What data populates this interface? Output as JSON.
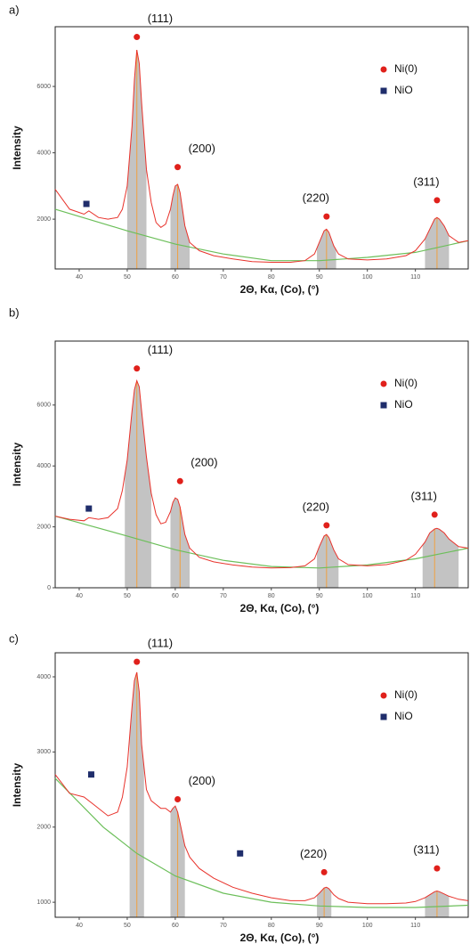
{
  "chart_data": [
    {
      "type": "line",
      "panel": "a)",
      "xlabel": "2Θ, Kα, (Co), (°)",
      "ylabel": "Intensity",
      "xlim": [
        35,
        121
      ],
      "ylim": [
        500,
        7800
      ],
      "xticks": [
        40,
        50,
        60,
        70,
        80,
        90,
        100,
        110
      ],
      "yticks": [
        2000,
        4000,
        6000
      ],
      "lines": [
        {
          "color": "#e8322b",
          "x": [
            35,
            38,
            41,
            42,
            44,
            46,
            48,
            49,
            50,
            51,
            51.5,
            52,
            52.5,
            53,
            54,
            55,
            56,
            57,
            58,
            59,
            59.5,
            60,
            60.5,
            61,
            61.5,
            62,
            63,
            65,
            68,
            72,
            76,
            80,
            84,
            87,
            89,
            90,
            91,
            91.5,
            92,
            93,
            94,
            96,
            100,
            104,
            108,
            110,
            112,
            113,
            114,
            114.5,
            115,
            116,
            117,
            119,
            121
          ],
          "values": [
            2900,
            2300,
            2150,
            2250,
            2050,
            2000,
            2050,
            2300,
            3000,
            4800,
            6200,
            7100,
            6700,
            5500,
            3500,
            2500,
            1900,
            1750,
            1850,
            2300,
            2700,
            3000,
            3050,
            2800,
            2300,
            1800,
            1300,
            1050,
            900,
            800,
            720,
            700,
            700,
            750,
            950,
            1300,
            1650,
            1700,
            1600,
            1200,
            950,
            800,
            770,
            800,
            900,
            1050,
            1400,
            1700,
            2000,
            2050,
            2000,
            1800,
            1500,
            1300,
            1350
          ]
        },
        {
          "color": "#6cbf5a",
          "x": [
            35,
            50,
            60,
            70,
            80,
            90,
            100,
            110,
            121
          ],
          "values": [
            2300,
            1650,
            1250,
            950,
            750,
            750,
            850,
            1000,
            1350
          ]
        }
      ],
      "regions": [
        [
          50,
          54
        ],
        [
          59,
          63
        ],
        [
          89.5,
          93.5
        ],
        [
          112,
          117
        ]
      ],
      "series": [
        {
          "name": "Ni(0)",
          "color": "#e0201b",
          "marker": "circle",
          "x": [
            52,
            60.5,
            91.5,
            114.5
          ],
          "values": [
            7490,
            3570,
            2080,
            2570
          ],
          "labels": [
            "(111)",
            "(200)",
            "(220)",
            "(311)"
          ]
        },
        {
          "name": "NiO",
          "color": "#1f2d6b",
          "marker": "square",
          "x": [
            41.5
          ],
          "values": [
            2460
          ]
        }
      ]
    },
    {
      "type": "line",
      "panel": "b)",
      "xlabel": "2Θ, Kα, (Co), (°)",
      "ylabel": "Intensity",
      "xlim": [
        35,
        121
      ],
      "ylim": [
        0,
        8100
      ],
      "xticks": [
        40,
        50,
        60,
        70,
        80,
        90,
        100,
        110
      ],
      "yticks": [
        0,
        2000,
        4000,
        6000
      ],
      "lines": [
        {
          "color": "#e8322b",
          "x": [
            35,
            38,
            41,
            42,
            44,
            46,
            48,
            49,
            50,
            51,
            51.5,
            52,
            52.5,
            53,
            54,
            55,
            56,
            57,
            58,
            59,
            59.5,
            60,
            60.5,
            61,
            61.5,
            62,
            63,
            65,
            68,
            72,
            76,
            80,
            84,
            87,
            89,
            90,
            91,
            91.5,
            92,
            93,
            94,
            96,
            100,
            104,
            108,
            110,
            112,
            113,
            114,
            114.5,
            115,
            116,
            117,
            119,
            121
          ],
          "values": [
            2350,
            2250,
            2200,
            2300,
            2250,
            2300,
            2600,
            3200,
            4200,
            5800,
            6500,
            6800,
            6600,
            5800,
            4300,
            3100,
            2400,
            2100,
            2150,
            2500,
            2800,
            2950,
            2900,
            2650,
            2200,
            1750,
            1300,
            1000,
            850,
            750,
            680,
            650,
            660,
            720,
            950,
            1350,
            1700,
            1750,
            1650,
            1250,
            950,
            760,
            720,
            760,
            900,
            1100,
            1500,
            1800,
            1930,
            1950,
            1920,
            1800,
            1600,
            1350,
            1300
          ]
        },
        {
          "color": "#6cbf5a",
          "x": [
            35,
            50,
            60,
            70,
            80,
            90,
            100,
            110,
            121
          ],
          "values": [
            2350,
            1700,
            1250,
            900,
            700,
            650,
            750,
            950,
            1300
          ]
        }
      ],
      "regions": [
        [
          49.5,
          55
        ],
        [
          59,
          63
        ],
        [
          89.5,
          94
        ],
        [
          111.5,
          119
        ]
      ],
      "series": [
        {
          "name": "Ni(0)",
          "color": "#e0201b",
          "marker": "circle",
          "x": [
            52,
            61,
            91.5,
            114
          ],
          "values": [
            7200,
            3500,
            2050,
            2400
          ],
          "labels": [
            "(111)",
            "(200)",
            "(220)",
            "(311)"
          ]
        },
        {
          "name": "NiO",
          "color": "#1f2d6b",
          "marker": "square",
          "x": [
            42
          ],
          "values": [
            2600
          ]
        }
      ]
    },
    {
      "type": "line",
      "panel": "c)",
      "xlabel": "2Θ, Kα, (Co), (°)",
      "ylabel": "Intensity",
      "xlim": [
        35,
        121
      ],
      "ylim": [
        800,
        4320
      ],
      "xticks": [
        40,
        50,
        60,
        70,
        80,
        90,
        100,
        110
      ],
      "yticks": [
        1000,
        2000,
        3000,
        4000
      ],
      "lines": [
        {
          "color": "#e8322b",
          "x": [
            35,
            38,
            41,
            43,
            46,
            48,
            49,
            50,
            51,
            51.5,
            52,
            52.5,
            53,
            54,
            55,
            56,
            57,
            58,
            59,
            59.5,
            60,
            60.5,
            61,
            61.5,
            62,
            63,
            65,
            68,
            72,
            76,
            80,
            84,
            87,
            89,
            90,
            91,
            91.5,
            92,
            93,
            94,
            96,
            100,
            104,
            108,
            110,
            112,
            113,
            114,
            114.5,
            115,
            116,
            117,
            119,
            121
          ],
          "values": [
            2700,
            2450,
            2400,
            2300,
            2150,
            2200,
            2400,
            2800,
            3600,
            3950,
            4060,
            3800,
            3100,
            2500,
            2350,
            2300,
            2250,
            2250,
            2200,
            2250,
            2280,
            2200,
            2050,
            1900,
            1750,
            1600,
            1450,
            1320,
            1200,
            1120,
            1060,
            1020,
            1020,
            1060,
            1120,
            1190,
            1200,
            1180,
            1100,
            1050,
            1000,
            980,
            980,
            990,
            1010,
            1060,
            1100,
            1140,
            1150,
            1140,
            1110,
            1080,
            1040,
            1020
          ]
        },
        {
          "color": "#6cbf5a",
          "x": [
            35,
            45,
            52,
            60,
            70,
            80,
            90,
            100,
            110,
            121
          ],
          "values": [
            2650,
            2000,
            1650,
            1350,
            1120,
            1000,
            950,
            930,
            930,
            960
          ]
        }
      ],
      "regions": [
        [
          50.5,
          53.5
        ],
        [
          59,
          62
        ],
        [
          89.5,
          92.5
        ],
        [
          112,
          117
        ]
      ],
      "series": [
        {
          "name": "Ni(0)",
          "color": "#e0201b",
          "marker": "circle",
          "x": [
            52,
            60.5,
            91,
            114.5
          ],
          "values": [
            4200,
            2370,
            1400,
            1450
          ],
          "labels": [
            "(111)",
            "(200)",
            "(220)",
            "(311)"
          ]
        },
        {
          "name": "NiO",
          "color": "#1f2d6b",
          "marker": "square",
          "x": [
            42.5,
            73.5
          ],
          "values": [
            2700,
            1650
          ]
        }
      ]
    }
  ]
}
